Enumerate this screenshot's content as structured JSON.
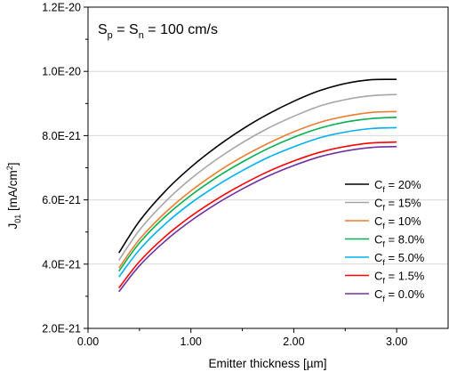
{
  "chart_data": {
    "type": "line",
    "annotation": {
      "prefix": "S",
      "sub1": "p",
      "middle": " = S",
      "sub2": "n",
      "suffix": " = 100 cm/s"
    },
    "xlabel": "Emitter thickness [µm]",
    "ylabel": {
      "main": "J",
      "sub": "01",
      "unit": " [mA/cm",
      "sup": "2",
      "close": "]"
    },
    "xlim": [
      0,
      3.5
    ],
    "ylim": [
      2e-21,
      1.2e-20
    ],
    "x_ticks": [
      {
        "value": 0,
        "label": "0.00"
      },
      {
        "value": 1,
        "label": "1.00"
      },
      {
        "value": 2,
        "label": "2.00"
      },
      {
        "value": 3,
        "label": "3.00"
      }
    ],
    "y_ticks": [
      {
        "value": 2e-21,
        "label": "2.0E-21"
      },
      {
        "value": 4e-21,
        "label": "4.0E-21"
      },
      {
        "value": 6e-21,
        "label": "6.0E-21"
      },
      {
        "value": 8e-21,
        "label": "8.0E-21"
      },
      {
        "value": 1e-20,
        "label": "1.0E-20"
      },
      {
        "value": 1.2e-20,
        "label": "1.2E-20"
      }
    ],
    "grid": "horizontal",
    "legend_placement": "bottom-right",
    "x": [
      0.3,
      0.5,
      0.75,
      1.0,
      1.25,
      1.5,
      1.75,
      2.0,
      2.25,
      2.5,
      2.75,
      3.0
    ],
    "series": [
      {
        "name": "20%",
        "legend_prefix": "C",
        "legend_sub": "f",
        "legend_suffix": " = 20%",
        "color": "#000000",
        "values": [
          4.35e-21,
          5.34e-21,
          6.27e-21,
          7.02e-21,
          7.65e-21,
          8.2e-21,
          8.67e-21,
          9.07e-21,
          9.4e-21,
          9.62e-21,
          9.74e-21,
          9.75e-21
        ]
      },
      {
        "name": "15%",
        "legend_prefix": "C",
        "legend_sub": "f",
        "legend_suffix": " = 15%",
        "color": "#a6a6a6",
        "values": [
          4.12e-21,
          5.06e-21,
          5.94e-21,
          6.66e-21,
          7.26e-21,
          7.78e-21,
          8.23e-21,
          8.6e-21,
          8.92e-21,
          9.12e-21,
          9.24e-21,
          9.28e-21
        ]
      },
      {
        "name": "10%",
        "legend_prefix": "C",
        "legend_sub": "f",
        "legend_suffix": " = 10%",
        "color": "#ed7d31",
        "values": [
          3.88e-21,
          4.77e-21,
          5.6e-21,
          6.28e-21,
          6.85e-21,
          7.34e-21,
          7.76e-21,
          8.12e-21,
          8.41e-21,
          8.6e-21,
          8.72e-21,
          8.75e-21
        ]
      },
      {
        "name": "8.0%",
        "legend_prefix": "C",
        "legend_sub": "f",
        "legend_suffix": " = 8.0%",
        "color": "#00b050",
        "values": [
          3.78e-21,
          4.66e-21,
          5.48e-21,
          6.14e-21,
          6.7e-21,
          7.18e-21,
          7.6e-21,
          7.95e-21,
          8.23e-21,
          8.42e-21,
          8.53e-21,
          8.57e-21
        ]
      },
      {
        "name": "5.0%",
        "legend_prefix": "C",
        "legend_sub": "f",
        "legend_suffix": " = 5.0%",
        "color": "#00b0f0",
        "values": [
          3.6e-21,
          4.45e-21,
          5.25e-21,
          5.9e-21,
          6.44e-21,
          6.91e-21,
          7.32e-21,
          7.65e-21,
          7.93e-21,
          8.11e-21,
          8.22e-21,
          8.25e-21
        ]
      },
      {
        "name": "1.5%",
        "legend_prefix": "C",
        "legend_sub": "f",
        "legend_suffix": " = 1.5%",
        "color": "#ff0000",
        "values": [
          3.26e-21,
          4.08e-21,
          4.86e-21,
          5.49e-21,
          6.02e-21,
          6.48e-21,
          6.88e-21,
          7.21e-21,
          7.48e-21,
          7.66e-21,
          7.77e-21,
          7.8e-21
        ]
      },
      {
        "name": "0.0%",
        "legend_prefix": "C",
        "legend_sub": "f",
        "legend_suffix": " = 0.0%",
        "color": "#7030a0",
        "values": [
          3.14e-21,
          3.95e-21,
          4.72e-21,
          5.35e-21,
          5.88e-21,
          6.34e-21,
          6.74e-21,
          7.07e-21,
          7.34e-21,
          7.52e-21,
          7.63e-21,
          7.66e-21
        ]
      }
    ]
  }
}
